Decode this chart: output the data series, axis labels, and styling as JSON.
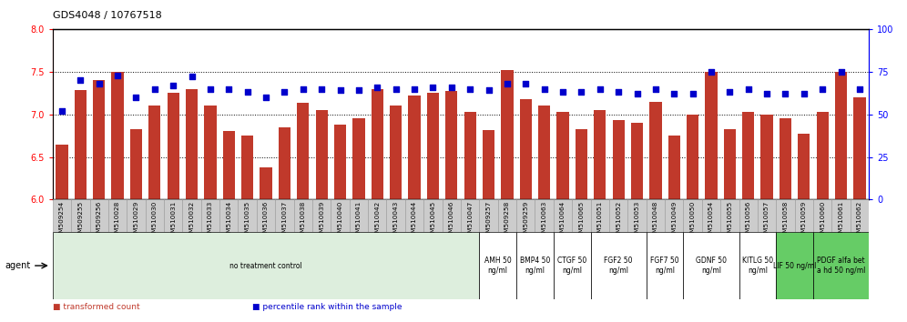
{
  "title": "GDS4048 / 10767518",
  "categories": [
    "GSM509254",
    "GSM509255",
    "GSM509256",
    "GSM510028",
    "GSM510029",
    "GSM510030",
    "GSM510031",
    "GSM510032",
    "GSM510033",
    "GSM510034",
    "GSM510035",
    "GSM510036",
    "GSM510037",
    "GSM510038",
    "GSM510039",
    "GSM510040",
    "GSM510041",
    "GSM510042",
    "GSM510043",
    "GSM510044",
    "GSM510045",
    "GSM510046",
    "GSM510047",
    "GSM509257",
    "GSM509258",
    "GSM509259",
    "GSM510063",
    "GSM510064",
    "GSM510065",
    "GSM510051",
    "GSM510052",
    "GSM510053",
    "GSM510048",
    "GSM510049",
    "GSM510050",
    "GSM510054",
    "GSM510055",
    "GSM510056",
    "GSM510057",
    "GSM510058",
    "GSM510059",
    "GSM510060",
    "GSM510061",
    "GSM510062"
  ],
  "bar_values": [
    6.65,
    7.28,
    7.4,
    7.5,
    6.83,
    7.1,
    7.25,
    7.3,
    7.1,
    6.8,
    6.75,
    6.38,
    6.85,
    7.13,
    7.05,
    6.88,
    6.95,
    7.3,
    7.1,
    7.22,
    7.25,
    7.27,
    7.03,
    6.82,
    7.52,
    7.18,
    7.1,
    7.03,
    6.83,
    7.05,
    6.93,
    6.9,
    7.15,
    6.75,
    7.0,
    7.5,
    6.83,
    7.03,
    7.0,
    6.95,
    6.77,
    7.03,
    7.5,
    7.2
  ],
  "percentile_values": [
    52,
    70,
    68,
    73,
    60,
    65,
    67,
    72,
    65,
    65,
    63,
    60,
    63,
    65,
    65,
    64,
    64,
    66,
    65,
    65,
    66,
    66,
    65,
    64,
    68,
    68,
    65,
    63,
    63,
    65,
    63,
    62,
    65,
    62,
    62,
    75,
    63,
    65,
    62,
    62,
    62,
    65,
    75,
    65
  ],
  "ylim_left": [
    6.0,
    8.0
  ],
  "ylim_right": [
    0,
    100
  ],
  "yticks_left": [
    6.0,
    6.5,
    7.0,
    7.5,
    8.0
  ],
  "yticks_right": [
    0,
    25,
    50,
    75,
    100
  ],
  "bar_color": "#C0392B",
  "dot_color": "#0000CC",
  "agent_groups": [
    {
      "label": "no treatment control",
      "count": 23,
      "bg": "#DDEEDD"
    },
    {
      "label": "AMH 50\nng/ml",
      "count": 2,
      "bg": "#FFFFFF"
    },
    {
      "label": "BMP4 50\nng/ml",
      "count": 2,
      "bg": "#FFFFFF"
    },
    {
      "label": "CTGF 50\nng/ml",
      "count": 2,
      "bg": "#FFFFFF"
    },
    {
      "label": "FGF2 50\nng/ml",
      "count": 3,
      "bg": "#FFFFFF"
    },
    {
      "label": "FGF7 50\nng/ml",
      "count": 2,
      "bg": "#FFFFFF"
    },
    {
      "label": "GDNF 50\nng/ml",
      "count": 3,
      "bg": "#FFFFFF"
    },
    {
      "label": "KITLG 50\nng/ml",
      "count": 2,
      "bg": "#FFFFFF"
    },
    {
      "label": "LIF 50 ng/ml",
      "count": 2,
      "bg": "#66CC66"
    },
    {
      "label": "PDGF alfa bet\na hd 50 ng/ml",
      "count": 3,
      "bg": "#66CC66"
    }
  ],
  "xticklabel_bg": "#CCCCCC",
  "xticklabel_border": "#999999"
}
